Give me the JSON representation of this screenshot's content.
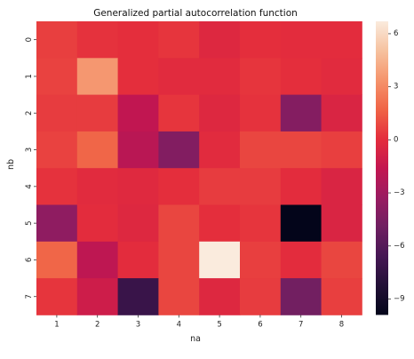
{
  "chart_data": {
    "type": "heatmap",
    "title": "Generalized partial autocorrelation function",
    "xlabel": "na",
    "ylabel": "nb",
    "x_categories": [
      "1",
      "2",
      "3",
      "4",
      "5",
      "6",
      "7",
      "8"
    ],
    "y_categories": [
      "0",
      "1",
      "2",
      "3",
      "4",
      "5",
      "6",
      "7"
    ],
    "values": [
      [
        0.6,
        0.2,
        0.1,
        0.3,
        -0.3,
        0.1,
        0.0,
        0.0
      ],
      [
        0.7,
        3.5,
        0.1,
        -0.1,
        -0.1,
        0.3,
        0.1,
        -0.1
      ],
      [
        0.5,
        0.5,
        -1.7,
        0.3,
        -0.3,
        0.2,
        -4.1,
        -0.5
      ],
      [
        0.7,
        1.8,
        -2.0,
        -4.2,
        -0.1,
        0.8,
        0.8,
        0.6
      ],
      [
        0.2,
        -0.1,
        -0.2,
        0.1,
        0.5,
        0.5,
        0.0,
        -0.5
      ],
      [
        -3.7,
        0.0,
        -0.3,
        0.8,
        0.1,
        0.3,
        -9.9,
        -0.5
      ],
      [
        1.8,
        -1.8,
        0.0,
        0.8,
        6.7,
        0.6,
        0.0,
        0.8
      ],
      [
        0.3,
        -1.1,
        -7.2,
        0.8,
        -0.3,
        0.5,
        -4.8,
        0.6
      ]
    ],
    "colorbar": {
      "min": -9.9,
      "max": 6.7,
      "ticks": [
        -9,
        -6,
        -3,
        0,
        3,
        6
      ]
    },
    "colormap": "rocket",
    "grid": false,
    "legend": "colorbar-right"
  }
}
